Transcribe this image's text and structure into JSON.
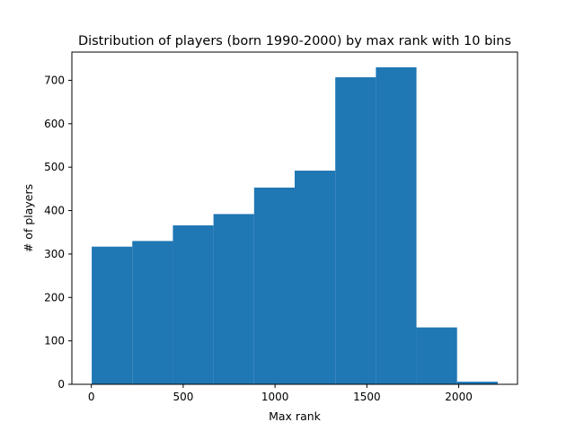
{
  "chart_data": {
    "type": "bar",
    "title": "Distribution of players (born 1990-2000) by max rank with 10 bins",
    "xlabel": "Max rank",
    "ylabel": "# of players",
    "bin_edges": [
      2,
      223,
      444,
      665,
      886,
      1107,
      1328,
      1549,
      1770,
      1991,
      2212
    ],
    "values": [
      317,
      330,
      366,
      392,
      453,
      492,
      707,
      730,
      131,
      6
    ],
    "xlim": [
      -106,
      2320
    ],
    "ylim": [
      0,
      765
    ],
    "xticks": [
      0,
      500,
      1000,
      1500,
      2000
    ],
    "xtick_labels": [
      "0",
      "500",
      "1000",
      "1500",
      "2000"
    ],
    "yticks": [
      0,
      100,
      200,
      300,
      400,
      500,
      600,
      700
    ],
    "ytick_labels": [
      "0",
      "100",
      "200",
      "300",
      "400",
      "500",
      "600",
      "700"
    ],
    "bar_color": "#1f77b4",
    "grid": false,
    "legend": false
  }
}
